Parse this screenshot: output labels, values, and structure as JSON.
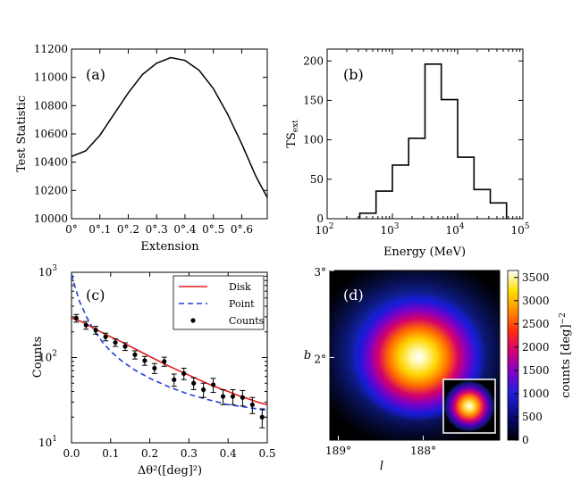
{
  "chart_data": [
    {
      "panel": "a",
      "type": "line",
      "label": "(a)",
      "xlabel": "Extension",
      "ylabel": "Test Statistic",
      "xlim": [
        0,
        0.69
      ],
      "ylim": [
        10000,
        11200
      ],
      "xticks": [
        0,
        0.1,
        0.2,
        0.3,
        0.4,
        0.5,
        0.6
      ],
      "xtick_labels": [
        "0°",
        "0°.1",
        "0°.2",
        "0°.3",
        "0°.4",
        "0°.5",
        "0°.6"
      ],
      "yticks": [
        10000,
        10200,
        10400,
        10600,
        10800,
        11000,
        11200
      ],
      "ytick_labels": [
        "10000",
        "10200",
        "10400",
        "10600",
        "10800",
        "11000",
        "11200"
      ],
      "x": [
        0,
        0.05,
        0.1,
        0.15,
        0.2,
        0.25,
        0.3,
        0.35,
        0.4,
        0.45,
        0.5,
        0.55,
        0.6,
        0.65,
        0.69
      ],
      "y": [
        10440,
        10480,
        10590,
        10740,
        10890,
        11020,
        11100,
        11140,
        11120,
        11050,
        10920,
        10740,
        10530,
        10300,
        10150
      ]
    },
    {
      "panel": "b",
      "type": "step",
      "label": "(b)",
      "xlabel": "Energy (MeV)",
      "ylabel": "TS",
      "ylabel_sub": "ext",
      "xscale": "log",
      "xlim": [
        100,
        100000
      ],
      "ylim": [
        0,
        215
      ],
      "xticks": [
        100,
        1000,
        10000,
        100000
      ],
      "xtick_base": [
        "10",
        "10",
        "10",
        "10"
      ],
      "xtick_exp": [
        "2",
        "3",
        "4",
        "5"
      ],
      "yticks": [
        0,
        50,
        100,
        150,
        200
      ],
      "ytick_labels": [
        "0",
        "50",
        "100",
        "150",
        "200"
      ],
      "bin_edges": [
        316,
        562,
        1000,
        1778,
        3162,
        5623,
        10000,
        17783,
        31623,
        56234
      ],
      "values": [
        7,
        35,
        68,
        102,
        196,
        151,
        78,
        37,
        20
      ]
    },
    {
      "panel": "c",
      "type": "line",
      "label": "(c)",
      "xlabel": "Δθ²([deg]²)",
      "ylabel": "Counts",
      "yscale": "log",
      "xlim": [
        0,
        0.5
      ],
      "ylim": [
        10,
        1000
      ],
      "xticks": [
        0,
        0.1,
        0.2,
        0.3,
        0.4,
        0.5
      ],
      "xtick_labels": [
        "0.0",
        "0.1",
        "0.2",
        "0.3",
        "0.4",
        "0.5"
      ],
      "yticks": [
        10,
        100,
        1000
      ],
      "ytick_base": [
        "10",
        "10",
        "10"
      ],
      "ytick_exp": [
        "1",
        "2",
        "3"
      ],
      "legend": [
        "Disk",
        "Point",
        "Counts"
      ],
      "legend_loc": "top-right",
      "series": [
        {
          "name": "Disk",
          "style": "solid",
          "color": "#e41a1c",
          "x": [
            0,
            0.025,
            0.05,
            0.075,
            0.1,
            0.125,
            0.15,
            0.175,
            0.2,
            0.225,
            0.25,
            0.275,
            0.3,
            0.325,
            0.35,
            0.375,
            0.4,
            0.425,
            0.45,
            0.475,
            0.5
          ],
          "y": [
            290,
            265,
            230,
            200,
            175,
            155,
            135,
            118,
            103,
            90,
            79,
            70,
            62,
            55,
            49,
            44,
            40,
            36,
            33,
            30,
            28
          ]
        },
        {
          "name": "Point",
          "style": "dashed",
          "color": "#1f3fd6",
          "x": [
            0,
            0.01,
            0.02,
            0.04,
            0.06,
            0.08,
            0.1,
            0.13,
            0.16,
            0.2,
            0.25,
            0.3,
            0.35,
            0.4,
            0.45,
            0.5
          ],
          "y": [
            950,
            650,
            460,
            290,
            200,
            150,
            118,
            90,
            72,
            57,
            45,
            37,
            32,
            28,
            26,
            24
          ]
        }
      ],
      "points": {
        "name": "Counts",
        "x": [
          0.012,
          0.037,
          0.062,
          0.087,
          0.112,
          0.137,
          0.162,
          0.187,
          0.212,
          0.237,
          0.262,
          0.287,
          0.312,
          0.337,
          0.362,
          0.387,
          0.412,
          0.437,
          0.462,
          0.487
        ],
        "y": [
          290,
          240,
          210,
          175,
          150,
          135,
          108,
          92,
          75,
          90,
          55,
          65,
          50,
          42,
          48,
          35,
          35,
          34,
          28,
          20
        ],
        "err": [
          30,
          25,
          22,
          18,
          15,
          14,
          12,
          11,
          10,
          11,
          9,
          10,
          8,
          8,
          9,
          7,
          7,
          7,
          6,
          5
        ]
      }
    },
    {
      "panel": "d",
      "type": "heatmap",
      "label": "(d)",
      "xlabel": "l",
      "ylabel": "b",
      "xlim": [
        189.1,
        187.1
      ],
      "ylim": [
        1.05,
        3.0
      ],
      "xticks": [
        189,
        188
      ],
      "xtick_labels": [
        "189°",
        "188°"
      ],
      "yticks": [
        2,
        3
      ],
      "ytick_labels": [
        "2°",
        "3°"
      ],
      "colorbar_label": "counts [deg]",
      "colorbar_exp": "−2",
      "colorbar_ticks": [
        0,
        500,
        1000,
        1500,
        2000,
        2500,
        3000,
        3500
      ],
      "colorbar_tick_labels": [
        "0",
        "500",
        "1000",
        "1500",
        "2000",
        "2500",
        "3000",
        "3500"
      ],
      "vmax": 3650,
      "source_center": [
        188.05,
        1.98
      ],
      "inset": "point-source PSF model"
    }
  ]
}
